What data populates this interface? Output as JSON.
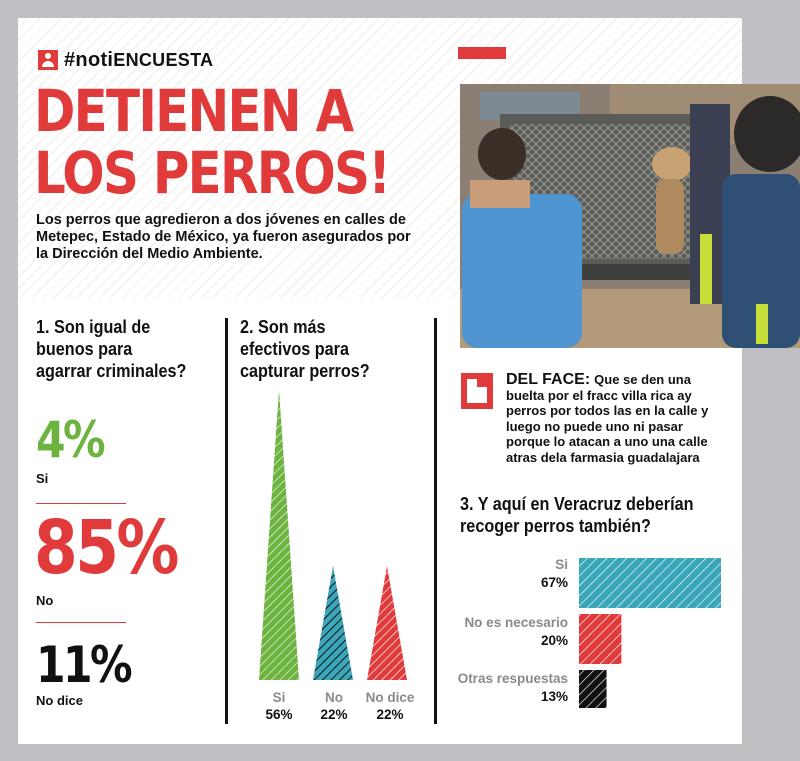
{
  "brand": {
    "hashtag": "#noti",
    "section": "ENCUESTA"
  },
  "headline": "DETIENEN A LOS PERROS!",
  "subhead": "Los perros que agredieron a dos jóvenes en calles de Metepec, Estado de México, ya fueron asegurados por la Dirección del Medio Ambiente.",
  "colors": {
    "red": "#e03a3a",
    "green": "#6cb33f",
    "teal": "#3aa6b9",
    "black": "#111111",
    "gray": "#8a8a8a"
  },
  "icons": [
    "user-icon",
    "comment-icon"
  ],
  "photo": {
    "alt": ""
  },
  "q1": {
    "title": "1. Son igual de buenos para agarrar criminales?",
    "answers": [
      {
        "pct": "4%",
        "label": "Si",
        "value": 4,
        "color": "#6cb33f"
      },
      {
        "pct": "85%",
        "label": "No",
        "value": 85,
        "color": "#e03a3a"
      },
      {
        "pct": "11%",
        "label": "No dice",
        "value": 11,
        "color": "#111111"
      }
    ]
  },
  "q2": {
    "title": "2. Son más efectivos para capturar perros?"
  },
  "face": {
    "lead": "DEL FACE:",
    "text": "Que se den una buelta por el fracc villa rica ay perros por todos las en la calle y luego no puede uno ni pasar porque lo atacan a uno una calle atras dela farmasia guadalajara"
  },
  "q3": {
    "title": "3. Y aquí en Veracruz deberían recoger perros también?"
  },
  "chart_data": [
    {
      "type": "bar",
      "title": "2. Son más efectivos para capturar perros?",
      "categories": [
        "Si",
        "No",
        "No dice"
      ],
      "values": [
        56,
        22,
        22
      ],
      "value_labels": [
        "56%",
        "22%",
        "22%"
      ],
      "colors": [
        "#6cb33f",
        "#3aa6b9",
        "#e03a3a"
      ],
      "orientation": "vertical",
      "mark": "triangle"
    },
    {
      "type": "bar",
      "title": "3. Y aquí en Veracruz deberían recoger perros también?",
      "categories": [
        "Si",
        "No es necesario",
        "Otras respuestas"
      ],
      "values": [
        67,
        20,
        13
      ],
      "value_labels": [
        "67%",
        "20%",
        "13%"
      ],
      "colors": [
        "#3aa6b9",
        "#e03a3a",
        "#111111"
      ],
      "orientation": "horizontal"
    }
  ]
}
